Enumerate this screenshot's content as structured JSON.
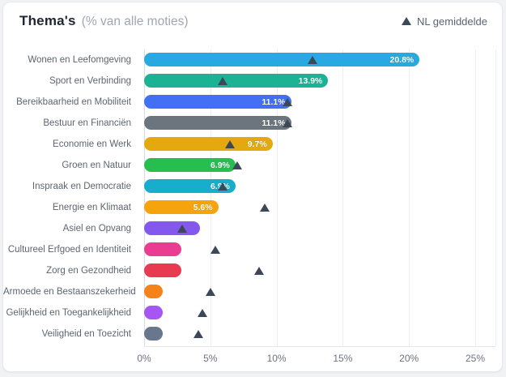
{
  "header": {
    "title": "Thema's",
    "subtitle": "(% van alle moties)"
  },
  "legend": {
    "marker": "triangle-up-icon",
    "marker_color": "#3c4758",
    "label": "NL gemiddelde"
  },
  "chart_data": {
    "type": "bar",
    "orientation": "horizontal",
    "title": "Thema's",
    "subtitle": "(% van alle moties)",
    "xlabel": "% van alle moties",
    "ylabel": "",
    "grid": true,
    "legend_position": "top-right",
    "axis": {
      "tick_labels": [
        "0%",
        "5%",
        "10%",
        "15%",
        "20%",
        "25%"
      ],
      "tick_values": [
        0,
        5,
        10,
        15,
        20,
        25
      ],
      "range": [
        0,
        26.5
      ]
    },
    "categories": [
      "Wonen en Leefomgeving",
      "Sport en Verbinding",
      "Bereikbaarheid en Mobiliteit",
      "Bestuur en Financiën",
      "Economie en Werk",
      "Groen en Natuur",
      "Inspraak en Democratie",
      "Energie en Klimaat",
      "Asiel en Opvang",
      "Cultureel Erfgoed en Identiteit",
      "Zorg en Gezondheid",
      "Armoede en Bestaanszekerheid",
      "Gelijkheid en Toegankelijkheid",
      "Veiligheid en Toezicht"
    ],
    "series": [
      {
        "name": "% van alle moties",
        "type": "bar",
        "values": [
          20.8,
          13.9,
          11.1,
          11.1,
          9.7,
          6.9,
          6.9,
          5.6,
          4.2,
          2.8,
          2.8,
          1.4,
          1.4,
          1.4
        ],
        "value_labels": [
          "20.8%",
          "13.9%",
          "11.1%",
          "11.1%",
          "9.7%",
          "6.9%",
          "6.9%",
          "5.6%",
          "",
          "",
          "",
          "",
          "",
          ""
        ],
        "colors": [
          "#28a9e1",
          "#1bb394",
          "#4170f4",
          "#6c757e",
          "#e3a90e",
          "#27be50",
          "#17adcc",
          "#f5a40d",
          "#8458ee",
          "#ea3d92",
          "#e83a50",
          "#f6821a",
          "#a656f2",
          "#68778c"
        ]
      },
      {
        "name": "NL gemiddelde",
        "type": "marker-triangle",
        "values": [
          12.7,
          5.9,
          10.8,
          10.8,
          6.5,
          7.0,
          5.9,
          9.1,
          2.9,
          5.4,
          8.7,
          5.0,
          4.4,
          4.1
        ],
        "color": "#3c4758"
      }
    ]
  }
}
